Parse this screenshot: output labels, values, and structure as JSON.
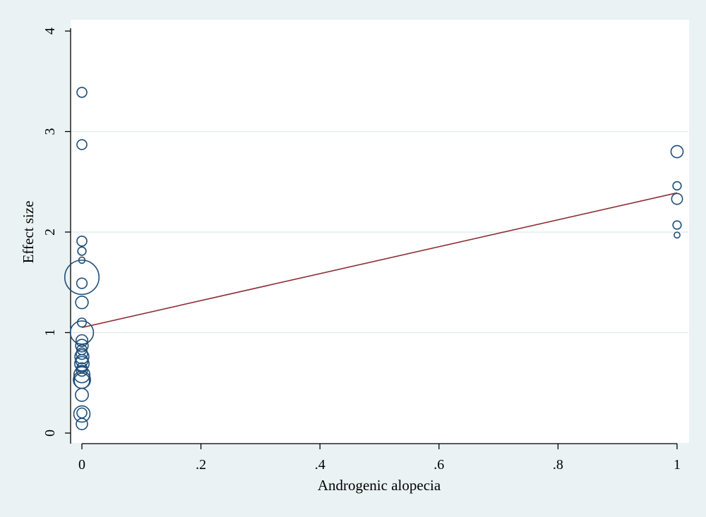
{
  "chart_data": {
    "type": "scatter",
    "title": "",
    "xlabel": "Androgenic alopecia",
    "ylabel": "Effect size",
    "xlim": [
      0,
      1
    ],
    "ylim": [
      0,
      4
    ],
    "x_ticks": [
      0,
      0.2,
      0.4,
      0.6,
      0.8,
      1
    ],
    "x_tick_labels": [
      "0",
      ".2",
      ".4",
      ".6",
      ".8",
      "1"
    ],
    "y_ticks": [
      0,
      1,
      2,
      3,
      4
    ],
    "y_tick_labels": [
      "0",
      "1",
      "2",
      "3",
      "4"
    ],
    "grid": "horizontal",
    "legend": "none",
    "colors": {
      "background": "#eaf2f3",
      "plot_area": "#ffffff",
      "gridline": "#e2ecee",
      "axis": "#000000",
      "marker": "#1f4e79",
      "fit_line": "#8b2e35"
    },
    "points": [
      {
        "x": 0,
        "y": 3.39,
        "weight": 1.0
      },
      {
        "x": 0,
        "y": 2.87,
        "weight": 1.0
      },
      {
        "x": 0,
        "y": 1.91,
        "weight": 1.0
      },
      {
        "x": 0,
        "y": 1.81,
        "weight": 0.7
      },
      {
        "x": 0,
        "y": 1.72,
        "weight": 0.4
      },
      {
        "x": 0,
        "y": 1.55,
        "weight": 12.0
      },
      {
        "x": 0,
        "y": 1.49,
        "weight": 1.1
      },
      {
        "x": 0,
        "y": 1.3,
        "weight": 1.6
      },
      {
        "x": 0,
        "y": 1.1,
        "weight": 0.8
      },
      {
        "x": 0,
        "y": 1.0,
        "weight": 5.5
      },
      {
        "x": 0,
        "y": 0.92,
        "weight": 1.4
      },
      {
        "x": 0,
        "y": 0.87,
        "weight": 1.6
      },
      {
        "x": 0,
        "y": 0.83,
        "weight": 1.0
      },
      {
        "x": 0,
        "y": 0.79,
        "weight": 1.3
      },
      {
        "x": 0,
        "y": 0.76,
        "weight": 2.0
      },
      {
        "x": 0,
        "y": 0.72,
        "weight": 1.5
      },
      {
        "x": 0,
        "y": 0.69,
        "weight": 2.1
      },
      {
        "x": 0,
        "y": 0.65,
        "weight": 1.0
      },
      {
        "x": 0,
        "y": 0.62,
        "weight": 1.2
      },
      {
        "x": 0,
        "y": 0.58,
        "weight": 2.6
      },
      {
        "x": 0,
        "y": 0.53,
        "weight": 3.0
      },
      {
        "x": 0,
        "y": 0.52,
        "weight": 2.4
      },
      {
        "x": 0,
        "y": 0.38,
        "weight": 1.7
      },
      {
        "x": 0,
        "y": 0.2,
        "weight": 1.0
      },
      {
        "x": 0,
        "y": 0.19,
        "weight": 2.7
      },
      {
        "x": 0,
        "y": 0.09,
        "weight": 1.3
      },
      {
        "x": 1,
        "y": 2.8,
        "weight": 1.5
      },
      {
        "x": 1,
        "y": 2.46,
        "weight": 0.7
      },
      {
        "x": 1,
        "y": 2.33,
        "weight": 1.2
      },
      {
        "x": 1,
        "y": 2.07,
        "weight": 0.7
      },
      {
        "x": 1,
        "y": 1.97,
        "weight": 0.35
      }
    ],
    "fit_line": {
      "x": [
        0,
        1
      ],
      "y": [
        1.05,
        2.39
      ]
    }
  }
}
